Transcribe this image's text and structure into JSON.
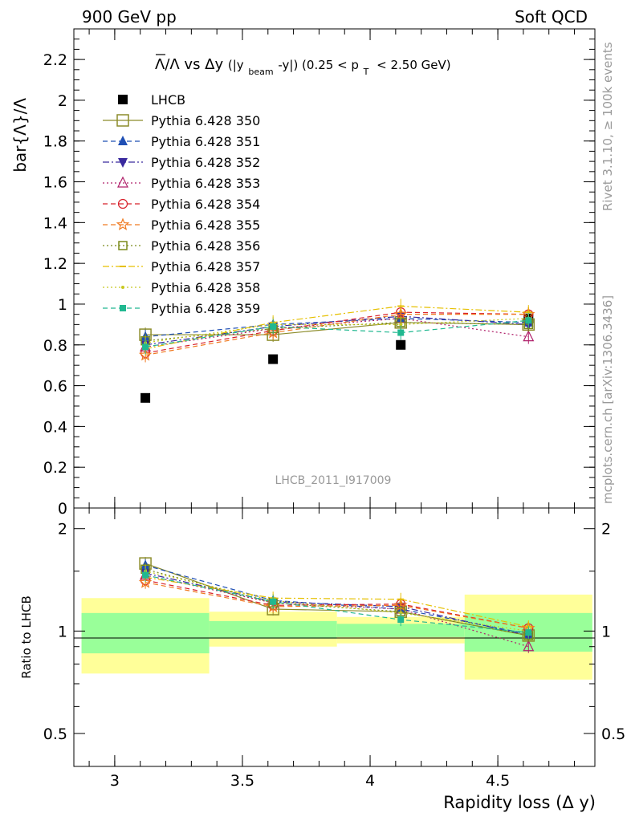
{
  "header": {
    "left": "900 GeV pp",
    "right": "Soft QCD"
  },
  "side_labels": {
    "top": "Rivet 3.1.10, ≥ 100k events",
    "bottom": "mcplots.cern.ch [arXiv:1306.3436]"
  },
  "watermark": "LHCB_2011_I917009",
  "chart_data": [
    {
      "type": "scatter",
      "panel": "main",
      "title_parts": {
        "lam": "Λ/Λ vs Δy",
        "paren_open": "(|y",
        "beam": "beam",
        "mid": "-y|) (0.25 < p",
        "t": "T",
        "end": "< 2.50 GeV)"
      },
      "ylabel": "bar{Λ}/Λ",
      "ylim": [
        0,
        2.35
      ],
      "yticks": [
        "0",
        "0.2",
        "0.4",
        "0.6",
        "0.8",
        "1",
        "1.2",
        "1.4",
        "1.6",
        "1.8",
        "2",
        "2.2"
      ],
      "ytick_values": [
        0,
        0.2,
        0.4,
        0.6,
        0.8,
        1.0,
        1.2,
        1.4,
        1.6,
        1.8,
        2.0,
        2.2
      ],
      "x": [
        3.12,
        3.62,
        4.12,
        4.62
      ],
      "series": [
        {
          "name": "LHCB",
          "color": "#000000",
          "marker": "square-filled",
          "line": "none",
          "values": [
            0.54,
            0.73,
            0.8,
            0.93
          ]
        },
        {
          "name": "Pythia 6.428 350",
          "color": "#8c8c2a",
          "marker": "square-open",
          "line": "solid",
          "values": [
            0.85,
            0.85,
            0.91,
            0.9
          ]
        },
        {
          "name": "Pythia 6.428 351",
          "color": "#1f4fb4",
          "marker": "triangle-filled",
          "line": "dash",
          "values": [
            0.84,
            0.9,
            0.93,
            0.91
          ]
        },
        {
          "name": "Pythia 6.428 352",
          "color": "#3a2a9e",
          "marker": "triangle-down-filled",
          "line": "dashdot",
          "values": [
            0.8,
            0.89,
            0.94,
            0.9
          ]
        },
        {
          "name": "Pythia 6.428 353",
          "color": "#b0206a",
          "marker": "triangle-open",
          "line": "dot",
          "values": [
            0.79,
            0.88,
            0.93,
            0.84
          ]
        },
        {
          "name": "Pythia 6.428 354",
          "color": "#d8202a",
          "marker": "circle-open",
          "line": "dash",
          "values": [
            0.76,
            0.87,
            0.96,
            0.95
          ]
        },
        {
          "name": "Pythia 6.428 355",
          "color": "#f07a20",
          "marker": "star-open",
          "line": "dash",
          "values": [
            0.75,
            0.86,
            0.95,
            0.95
          ]
        },
        {
          "name": "Pythia 6.428 356",
          "color": "#7a8a1a",
          "marker": "square-open-small",
          "line": "dot",
          "values": [
            0.82,
            0.88,
            0.91,
            0.9
          ]
        },
        {
          "name": "Pythia 6.428 357",
          "color": "#e6c000",
          "marker": "dash",
          "line": "dashdot",
          "values": [
            0.78,
            0.91,
            0.99,
            0.96
          ]
        },
        {
          "name": "Pythia 6.428 358",
          "color": "#c8c820",
          "marker": "dot",
          "line": "dot",
          "values": [
            0.81,
            0.9,
            0.9,
            0.93
          ]
        },
        {
          "name": "Pythia 6.428 359",
          "color": "#20b890",
          "marker": "square-filled-small",
          "line": "dash",
          "values": [
            0.79,
            0.89,
            0.86,
            0.92
          ]
        }
      ]
    },
    {
      "type": "scatter",
      "panel": "ratio",
      "ylabel": "Ratio to LHCB",
      "ylim": [
        0.4,
        2.3
      ],
      "log_scale": true,
      "yticks_left": [
        "0.5",
        "1",
        "2"
      ],
      "yticks_right": [
        "0.5",
        "1",
        "2"
      ],
      "ytick_values": [
        0.5,
        1.0,
        2.0
      ],
      "xlabel": "Rapidity loss (Δ y)",
      "xlim": [
        2.84,
        4.88
      ],
      "xticks": [
        "3",
        "3.5",
        "4",
        "4.5"
      ],
      "xtick_values": [
        3.0,
        3.5,
        4.0,
        4.5
      ],
      "bands": [
        {
          "x_range": [
            2.87,
            3.37
          ],
          "green": [
            0.86,
            1.13
          ],
          "yellow": [
            0.75,
            1.25
          ]
        },
        {
          "x_range": [
            3.37,
            3.87
          ],
          "green": [
            0.95,
            1.07
          ],
          "yellow": [
            0.9,
            1.14
          ]
        },
        {
          "x_range": [
            3.87,
            4.37
          ],
          "green": [
            0.96,
            1.05
          ],
          "yellow": [
            0.92,
            1.1
          ]
        },
        {
          "x_range": [
            4.37,
            4.87
          ],
          "green": [
            0.87,
            1.13
          ],
          "yellow": [
            0.72,
            1.28
          ]
        }
      ],
      "series_ratio": [
        [
          1.58,
          1.16,
          1.14,
          0.97
        ],
        [
          1.56,
          1.23,
          1.16,
          0.98
        ],
        [
          1.48,
          1.22,
          1.18,
          0.97
        ],
        [
          1.46,
          1.21,
          1.16,
          0.9
        ],
        [
          1.41,
          1.19,
          1.2,
          1.02
        ],
        [
          1.39,
          1.18,
          1.19,
          1.02
        ],
        [
          1.52,
          1.21,
          1.14,
          0.97
        ],
        [
          1.44,
          1.25,
          1.24,
          1.03
        ],
        [
          1.5,
          1.23,
          1.13,
          1.0
        ],
        [
          1.46,
          1.22,
          1.08,
          0.99
        ]
      ]
    }
  ]
}
